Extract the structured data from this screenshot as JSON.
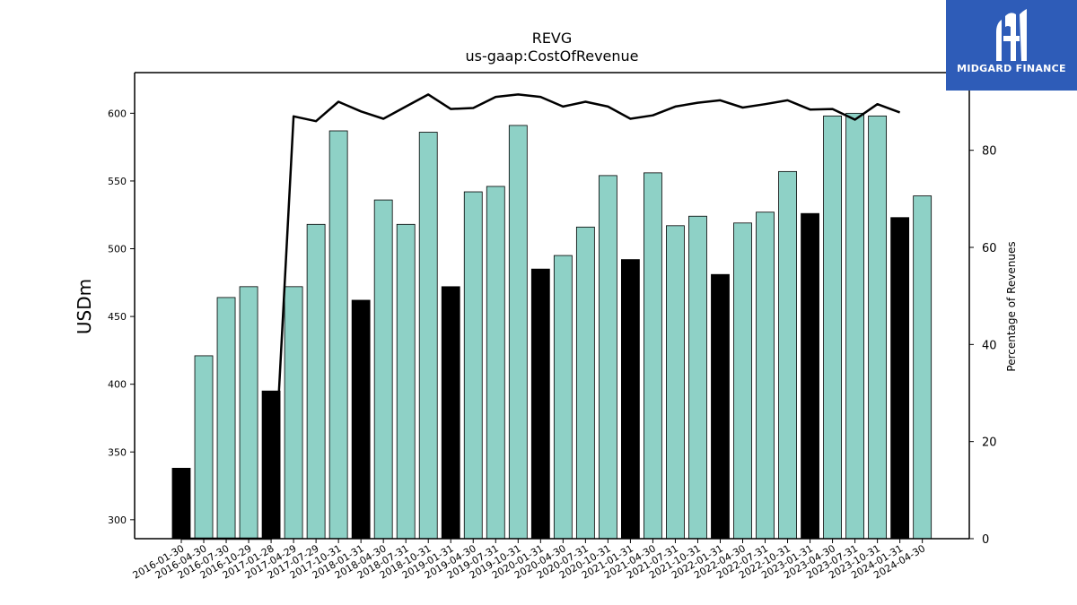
{
  "logo": {
    "text": "MIDGARD FINANCE",
    "background": "#2e5cb8"
  },
  "chart_data": {
    "type": "bar",
    "title": "REVG",
    "subtitle": "us-gaap:CostOfRevenue",
    "ylabel": "USDm",
    "y2label": "Percentage of Revenues",
    "ylim": [
      286,
      630
    ],
    "y2lim": [
      0,
      96
    ],
    "yticks": [
      300,
      350,
      400,
      450,
      500,
      550,
      600
    ],
    "y2ticks": [
      0,
      20,
      40,
      60,
      80
    ],
    "colors": {
      "quarter": "#8ed1c6",
      "fiscal_q1": "#000000",
      "line": "#000000"
    },
    "categories": [
      "2016-01-30",
      "2016-04-30",
      "2016-07-30",
      "2016-10-29",
      "2017-01-28",
      "2017-04-29",
      "2017-07-29",
      "2017-10-31",
      "2018-01-31",
      "2018-04-30",
      "2018-07-31",
      "2018-10-31",
      "2019-01-31",
      "2019-04-30",
      "2019-07-31",
      "2019-10-31",
      "2020-01-31",
      "2020-04-30",
      "2020-07-31",
      "2020-10-31",
      "2021-01-31",
      "2021-04-30",
      "2021-07-31",
      "2021-10-31",
      "2022-01-31",
      "2022-04-30",
      "2022-07-31",
      "2022-10-31",
      "2023-01-31",
      "2023-04-30",
      "2023-07-31",
      "2023-10-31",
      "2024-01-31",
      "2024-04-30"
    ],
    "values": [
      338,
      421,
      464,
      472,
      395,
      472,
      518,
      587,
      462,
      536,
      518,
      586,
      472,
      542,
      546,
      591,
      485,
      495,
      516,
      554,
      492,
      556,
      517,
      524,
      481,
      519,
      527,
      557,
      526,
      598,
      600,
      598,
      523,
      539
    ],
    "highlight": [
      true,
      false,
      false,
      false,
      true,
      false,
      false,
      false,
      true,
      false,
      false,
      false,
      true,
      false,
      false,
      false,
      true,
      false,
      false,
      false,
      true,
      false,
      false,
      false,
      true,
      false,
      false,
      false,
      true,
      false,
      false,
      false,
      true,
      false
    ],
    "percent_of_revenue": [
      0,
      0,
      0,
      0,
      0,
      87,
      86,
      90,
      88,
      86.5,
      89,
      91.5,
      88.5,
      88.7,
      91,
      91.5,
      91,
      89,
      90,
      89,
      86.5,
      87.2,
      89,
      89.8,
      90.3,
      88.8,
      89.5,
      90.3,
      88.4,
      88.5,
      86.3,
      89.5,
      87.8,
      null
    ]
  }
}
